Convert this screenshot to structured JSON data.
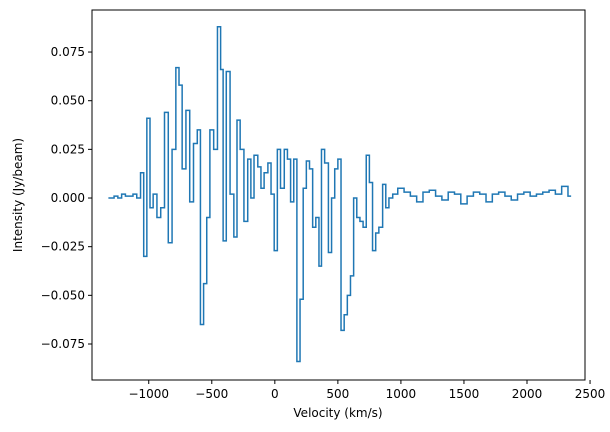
{
  "chart_data": {
    "type": "step",
    "xlabel": "Velocity (km/s)",
    "ylabel": "Intensity (Jy/beam)",
    "color": "#1f77b4",
    "xlim": [
      -1450,
      2460
    ],
    "ylim": [
      -0.0935,
      0.0966
    ],
    "xticks": [
      {
        "value": -1000,
        "label": "−1000"
      },
      {
        "value": -500,
        "label": "−500"
      },
      0,
      500,
      1000,
      1500,
      2000,
      2500
    ],
    "yticks": [
      {
        "value": -0.075,
        "label": "−0.075"
      },
      {
        "value": -0.05,
        "label": "−0.050"
      },
      {
        "value": -0.025,
        "label": "−0.025"
      },
      {
        "value": 0,
        "label": "0.000"
      },
      0.025,
      {
        "value": 0.05,
        "label": "0.050"
      },
      0.075
    ],
    "x": [
      -1320,
      -1290,
      -1260,
      -1230,
      -1200,
      -1170,
      -1140,
      -1110,
      -1080,
      -1050,
      -1030,
      -1000,
      -980,
      -950,
      -920,
      -890,
      -860,
      -830,
      -800,
      -770,
      -750,
      -720,
      -690,
      -660,
      -630,
      -600,
      -580,
      -550,
      -530,
      -500,
      -470,
      -440,
      -420,
      -400,
      -370,
      -340,
      -310,
      -290,
      -260,
      -230,
      -200,
      -180,
      -150,
      -120,
      -100,
      -70,
      -40,
      -20,
      10,
      30,
      60,
      90,
      110,
      140,
      160,
      190,
      210,
      240,
      260,
      290,
      310,
      340,
      360,
      380,
      410,
      440,
      460,
      490,
      510,
      540,
      560,
      590,
      610,
      640,
      660,
      690,
      710,
      740,
      760,
      790,
      810,
      840,
      870,
      890,
      920,
      950,
      1000,
      1050,
      1100,
      1150,
      1200,
      1250,
      1300,
      1350,
      1400,
      1450,
      1500,
      1550,
      1600,
      1650,
      1700,
      1750,
      1800,
      1850,
      1900,
      1950,
      2000,
      2050,
      2100,
      2150,
      2200,
      2250,
      2300,
      2350
    ],
    "values": [
      0.0,
      0.0,
      0.001,
      0.0,
      0.002,
      0.001,
      0.001,
      0.002,
      0.0,
      0.013,
      -0.03,
      0.041,
      -0.005,
      0.002,
      -0.01,
      -0.005,
      0.044,
      -0.023,
      0.025,
      0.067,
      0.058,
      0.015,
      0.045,
      -0.002,
      0.028,
      0.035,
      -0.065,
      -0.044,
      -0.01,
      0.035,
      0.025,
      0.088,
      0.066,
      -0.022,
      0.065,
      0.002,
      -0.02,
      0.04,
      0.025,
      -0.012,
      0.02,
      0.0,
      0.022,
      0.016,
      0.005,
      0.013,
      0.018,
      0.002,
      -0.027,
      0.025,
      0.005,
      0.025,
      0.02,
      -0.002,
      0.02,
      -0.084,
      -0.052,
      0.005,
      0.019,
      0.015,
      -0.015,
      -0.01,
      -0.035,
      0.025,
      0.018,
      -0.028,
      0.0,
      0.015,
      0.02,
      -0.068,
      -0.06,
      -0.05,
      -0.04,
      0.0,
      -0.01,
      -0.012,
      -0.015,
      0.022,
      0.008,
      -0.027,
      -0.018,
      -0.015,
      0.007,
      -0.005,
      0.0,
      0.002,
      0.005,
      0.003,
      0.001,
      -0.002,
      0.003,
      0.004,
      0.001,
      -0.001,
      0.003,
      0.002,
      -0.003,
      0.001,
      0.003,
      0.002,
      -0.002,
      0.002,
      0.003,
      0.001,
      -0.001,
      0.002,
      0.003,
      0.001,
      0.002,
      0.003,
      0.004,
      0.002,
      0.006,
      0.001
    ]
  }
}
